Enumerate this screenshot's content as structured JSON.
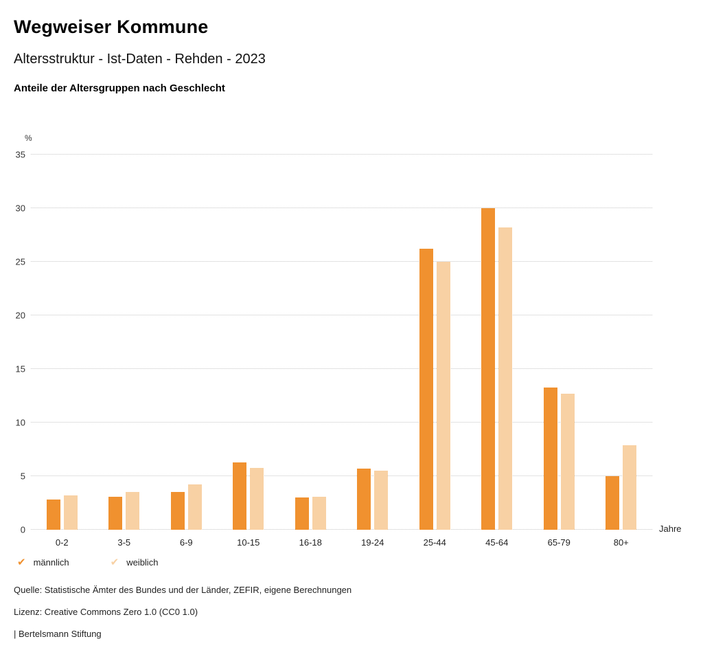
{
  "header": {
    "title": "Wegweiser Kommune",
    "subtitle": "Altersstruktur - Ist-Daten - Rehden - 2023",
    "chart_heading": "Anteile der Altersgruppen nach Geschlecht"
  },
  "chart_data": {
    "type": "bar",
    "title": "Anteile der Altersgruppen nach Geschlecht",
    "unit_label": "%",
    "xlabel": "Jahre",
    "ylabel": "%",
    "ylim": [
      0,
      35
    ],
    "yticks": [
      0,
      5,
      10,
      15,
      20,
      25,
      30,
      35
    ],
    "grid": true,
    "legend_position": "bottom",
    "categories": [
      "0-2",
      "3-5",
      "6-9",
      "10-15",
      "16-18",
      "19-24",
      "25-44",
      "45-64",
      "65-79",
      "80+"
    ],
    "series": [
      {
        "name": "männlich",
        "color": "#F0912F",
        "values": [
          2.8,
          3.1,
          3.5,
          6.3,
          3.0,
          5.7,
          26.2,
          30.0,
          13.3,
          5.0
        ]
      },
      {
        "name": "weiblich",
        "color": "#F8D1A4",
        "values": [
          3.2,
          3.5,
          4.2,
          5.8,
          3.1,
          5.5,
          25.0,
          28.2,
          12.7,
          7.9
        ]
      }
    ]
  },
  "footer": {
    "source": "Quelle: Statistische Ämter des Bundes und der Länder, ZEFIR, eigene Berechnungen",
    "license": "Lizenz: Creative Commons Zero 1.0 (CC0 1.0)",
    "attribution": "| Bertelsmann Stiftung"
  }
}
